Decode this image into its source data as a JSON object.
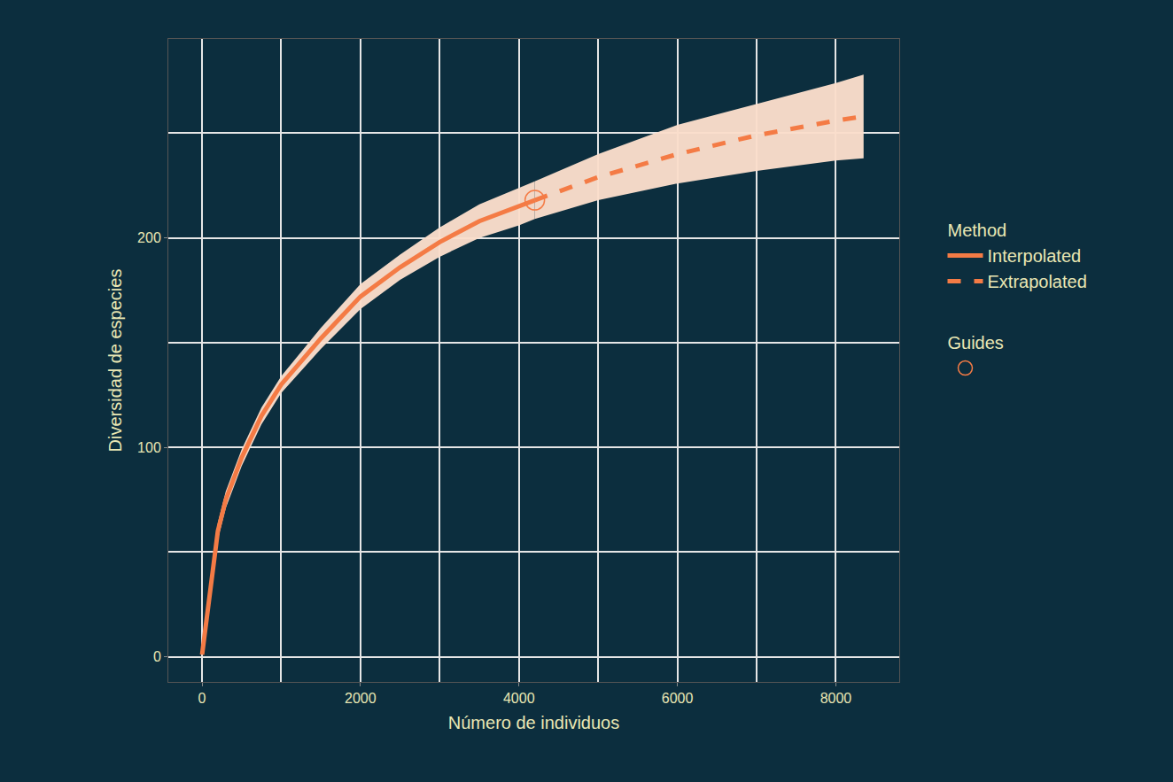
{
  "chart_data": {
    "type": "line",
    "x_title": "Número de individuos",
    "y_title": "Diversidad de especies",
    "xlim": [
      -425,
      8800
    ],
    "ylim": [
      -12,
      295
    ],
    "xticks": [
      0,
      2000,
      4000,
      6000,
      8000
    ],
    "yticks": [
      0,
      100,
      200
    ],
    "grid": true,
    "legend": "right",
    "series": [
      {
        "name": "Interpolated",
        "group": "Method",
        "color": "#f47b45",
        "line_style": "solid",
        "x": [
          1,
          100,
          200,
          300,
          500,
          750,
          1000,
          1500,
          2000,
          2500,
          3000,
          3500,
          4000,
          4200
        ],
        "values": [
          1,
          30,
          60,
          75,
          95,
          115,
          130,
          152,
          172,
          186,
          198,
          208,
          215,
          218
        ],
        "lower": [
          1,
          27,
          56,
          71,
          91,
          111,
          126,
          147,
          166,
          180,
          191,
          200,
          206,
          209
        ],
        "upper": [
          1,
          33,
          64,
          79,
          99,
          119,
          134,
          157,
          178,
          192,
          205,
          216,
          224,
          227
        ]
      },
      {
        "name": "Extrapolated",
        "group": "Method",
        "color": "#f47b45",
        "line_style": "dashed",
        "x": [
          4200,
          5000,
          6000,
          7000,
          8000,
          8350
        ],
        "values": [
          218,
          229,
          240,
          249,
          256,
          258
        ],
        "lower": [
          209,
          218,
          226,
          232,
          237,
          238
        ],
        "upper": [
          227,
          240,
          254,
          264,
          274,
          278
        ]
      }
    ],
    "observed": {
      "group": "Guides",
      "x": 4200,
      "value": 218,
      "color": "#f47b45",
      "marker": "circle-open"
    }
  }
}
